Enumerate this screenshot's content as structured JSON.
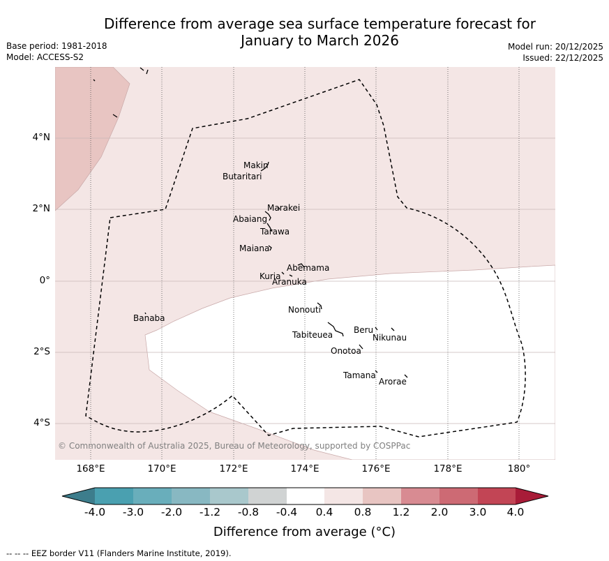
{
  "title_line1": "Difference from average sea surface temperature forecast for",
  "title_line2": "January to March 2026",
  "base_period": "Base period: 1981-2018",
  "model": "Model: ACCESS-S2",
  "model_run": "Model run: 20/12/2025",
  "issued": "Issued: 22/12/2025",
  "lat_labels": [
    "4°N",
    "2°N",
    "0°",
    "2°S",
    "4°S"
  ],
  "lon_labels": [
    "168°E",
    "170°E",
    "172°E",
    "174°E",
    "176°E",
    "178°E",
    "180°"
  ],
  "islands": [
    "Makin",
    "Butaritari",
    "Marakei",
    "Abaiang",
    "Tarawa",
    "Maiana",
    "Abemama",
    "Kuria",
    "Aranuka",
    "Banaba",
    "Nonouti",
    "Beru",
    "Nikunau",
    "Tabiteuea",
    "Onotoa",
    "Tamana",
    "Arorae"
  ],
  "copyright": "© Commonwealth of Australia 2025, Bureau of Meteorology, supported by COSPPac",
  "colorbar": {
    "ticks": [
      "-4.0",
      "-3.0",
      "-2.0",
      "-1.2",
      "-0.8",
      "-0.4",
      "0.4",
      "0.8",
      "1.2",
      "2.0",
      "3.0",
      "4.0"
    ],
    "colors": [
      "#3d7d8c",
      "#4aa0b0",
      "#69aebb",
      "#88b8c2",
      "#a9c8cc",
      "#d0d3d3",
      "#ffffff",
      "#f4e6e5",
      "#e8c5c2",
      "#d88b92",
      "#cd6a74",
      "#c24555",
      "#a81c38"
    ],
    "label": "Difference from average (°C)"
  },
  "legend_footer": "--  --  -- EEZ border V11 (Flanders Marine Institute, 2019)."
}
